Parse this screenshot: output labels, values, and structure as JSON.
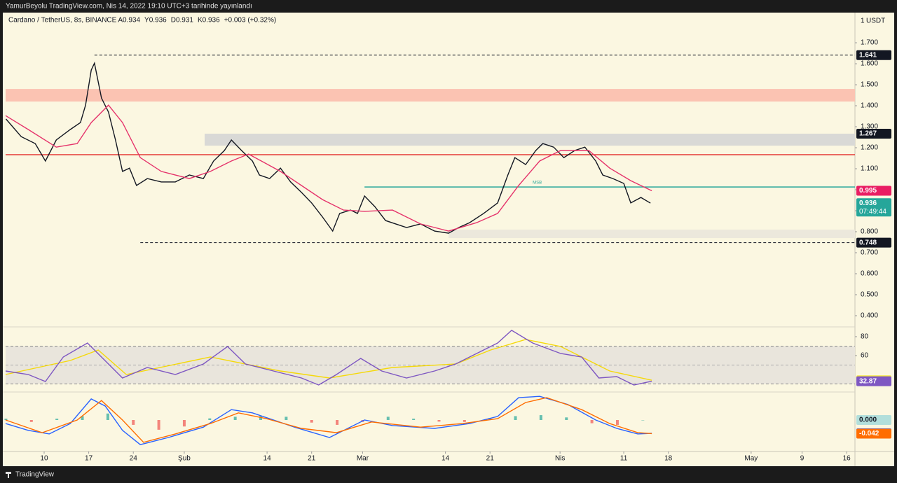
{
  "header": {
    "published": "YamurBeyolu TradingView.com, Nis 14, 2022 19:10 UTC+3 tarihinde yayınlandı",
    "symbol": "Cardano / TetherUS, 8s, BINANCE",
    "legend_items": [
      "A0.934",
      "Y0.936",
      "D0.931",
      "K0.936",
      "+0.003 (+0.32%)"
    ],
    "scale_mode": "1",
    "unit": "USDT"
  },
  "footer": {
    "brand": "TradingView"
  },
  "chart_data": [
    {
      "type": "line",
      "xlim": [
        3.95,
        137.3
      ],
      "ylim": [
        0.35,
        1.837
      ],
      "grid": false,
      "yticks": [
        {
          "value": 0.4,
          "label": "0.400"
        },
        {
          "value": 0.5,
          "label": "0.500"
        },
        {
          "value": 0.6,
          "label": "0.600"
        },
        {
          "value": 0.7,
          "label": "0.700"
        },
        {
          "value": 0.8,
          "label": "0.800"
        },
        {
          "value": 0.9,
          "label": "0.900"
        },
        {
          "value": 1.0,
          "label": "1.000"
        },
        {
          "value": 1.1,
          "label": "1.100"
        },
        {
          "value": 1.2,
          "label": "1.200"
        },
        {
          "value": 1.3,
          "label": "1.300"
        },
        {
          "value": 1.4,
          "label": "1.400"
        },
        {
          "value": 1.5,
          "label": "1.500"
        },
        {
          "value": 1.6,
          "label": "1.600"
        },
        {
          "value": 1.7,
          "label": "1.700"
        }
      ],
      "zones": [
        {
          "from": 1.42,
          "to": 1.48,
          "color": "#fbc3b2"
        },
        {
          "from": 1.21,
          "to": 1.267,
          "color": "#d9d9d6",
          "start": 35.2
        },
        {
          "from": 0.77,
          "to": 0.81,
          "color": "#ece8dc",
          "start": 73.5
        }
      ],
      "hlines": [
        {
          "value": 1.641,
          "start": 17.9,
          "color": "#131722",
          "style": "dashed"
        },
        {
          "value": 0.748,
          "start": 25.1,
          "color": "#131722",
          "style": "dashed"
        },
        {
          "value": 1.167,
          "start": 3.95,
          "color": "#e53935",
          "style": "solid"
        },
        {
          "value": 1.013,
          "start": 60.3,
          "color": "#26a69a",
          "style": "solid",
          "note": "MSB"
        }
      ],
      "axis_labels": [
        {
          "value": 1.641,
          "color": "#131722"
        },
        {
          "value": 1.267,
          "color": "#131722"
        },
        {
          "value": 0.748,
          "color": "#131722"
        }
      ],
      "series": [
        {
          "color": "#131722",
          "label_color": "#26a69a",
          "countdown": "07:49:44",
          "x": [
            4.0,
            6.4,
            8.6,
            10.2,
            11.9,
            14.1,
            15.7,
            16.5,
            17.4,
            17.9,
            19.0,
            20.1,
            21.2,
            22.3,
            23.4,
            24.5,
            26.2,
            28.4,
            30.6,
            32.8,
            35.0,
            36.6,
            38.3,
            39.4,
            41.0,
            42.7,
            43.8,
            45.4,
            47.1,
            48.7,
            50.4,
            52.0,
            53.7,
            55.3,
            56.4,
            58.1,
            59.2,
            60.3,
            61.9,
            63.6,
            65.2,
            66.9,
            69.1,
            71.3,
            73.5,
            75.1,
            76.8,
            79.0,
            81.2,
            82.8,
            83.9,
            85.6,
            87.2,
            88.3,
            90.0,
            91.6,
            93.3,
            94.9,
            96.6,
            97.7,
            99.3,
            101.0,
            102.1,
            103.7,
            105.2
          ],
          "values": [
            1.337,
            1.253,
            1.22,
            1.137,
            1.237,
            1.287,
            1.32,
            1.403,
            1.57,
            1.603,
            1.437,
            1.37,
            1.237,
            1.087,
            1.103,
            1.02,
            1.053,
            1.037,
            1.037,
            1.07,
            1.053,
            1.137,
            1.187,
            1.237,
            1.187,
            1.137,
            1.07,
            1.053,
            1.103,
            1.037,
            0.987,
            0.937,
            0.87,
            0.803,
            0.887,
            0.903,
            0.887,
            0.97,
            0.92,
            0.853,
            0.837,
            0.82,
            0.837,
            0.803,
            0.793,
            0.82,
            0.843,
            0.887,
            0.937,
            1.07,
            1.153,
            1.12,
            1.187,
            1.22,
            1.203,
            1.153,
            1.187,
            1.203,
            1.137,
            1.07,
            1.053,
            1.03,
            0.937,
            0.963,
            0.936
          ]
        },
        {
          "color": "#e5336b",
          "label_color": "#e91e63",
          "x": [
            3.95,
            7.5,
            11.9,
            15.2,
            17.4,
            20.1,
            22.3,
            25.1,
            28.4,
            32.8,
            36.1,
            39.4,
            42.1,
            47.1,
            50.4,
            53.7,
            57.0,
            60.3,
            64.7,
            69.1,
            73.5,
            77.9,
            81.2,
            84.5,
            87.8,
            91.1,
            95.5,
            98.8,
            102.1,
            105.4
          ],
          "values": [
            1.353,
            1.287,
            1.203,
            1.22,
            1.32,
            1.403,
            1.32,
            1.153,
            1.087,
            1.053,
            1.087,
            1.137,
            1.17,
            1.087,
            1.02,
            0.953,
            0.903,
            0.897,
            0.903,
            0.837,
            0.803,
            0.843,
            0.887,
            1.02,
            1.137,
            1.187,
            1.187,
            1.103,
            1.043,
            0.995
          ]
        }
      ]
    },
    {
      "type": "line",
      "xlim": [
        3.95,
        137.3
      ],
      "ylim": [
        21.5,
        89.6
      ],
      "yticks": [
        60,
        80
      ],
      "band": {
        "from": 30,
        "to": 70,
        "color": "#e9e5dc"
      },
      "midline": 50,
      "series": [
        {
          "color": "#f5d90a",
          "label_color": "#f5e93a",
          "label_text_color": "#131722",
          "x": [
            3.95,
            14.1,
            18.5,
            22.9,
            36.1,
            47.1,
            54.8,
            64.7,
            74.6,
            80.1,
            85.6,
            91.1,
            98.8,
            105.4
          ],
          "values": [
            40,
            54.8,
            65.9,
            40,
            58.5,
            43.7,
            36.3,
            47.4,
            51.1,
            65.9,
            77,
            69.6,
            43.7,
            33.92
          ]
        },
        {
          "color": "#7e57c2",
          "label_color": "#7e57c2",
          "x": [
            3.95,
            7.5,
            10.2,
            13.0,
            16.8,
            19.0,
            22.3,
            26.2,
            30.6,
            35.0,
            38.8,
            41.6,
            46.0,
            50.4,
            53.1,
            55.9,
            59.7,
            63.0,
            66.9,
            71.3,
            74.6,
            77.9,
            81.2,
            83.4,
            86.7,
            91.1,
            94.4,
            97.1,
            99.9,
            102.6,
            105.4
          ],
          "values": [
            43.7,
            40,
            32.6,
            58.5,
            73.3,
            58.5,
            36.3,
            47.4,
            40,
            51.1,
            69.6,
            51.1,
            43.7,
            36.3,
            28.9,
            40,
            57,
            43.7,
            36.3,
            43.7,
            51.1,
            62.2,
            73.3,
            86.7,
            73.3,
            62.2,
            58.5,
            36.3,
            37.8,
            28.9,
            32.87
          ]
        }
      ]
    },
    {
      "type": "line",
      "xlim": [
        3.95,
        137.3
      ],
      "ylim": [
        -0.0972,
        0.0864
      ],
      "xticks": [
        {
          "value": 10,
          "label": "10"
        },
        {
          "value": 17,
          "label": "17"
        },
        {
          "value": 24,
          "label": "24"
        },
        {
          "value": 32,
          "label": "Şub"
        },
        {
          "value": 45,
          "label": "14"
        },
        {
          "value": 52,
          "label": "21"
        },
        {
          "value": 60,
          "label": "Mar"
        },
        {
          "value": 73,
          "label": "14"
        },
        {
          "value": 80,
          "label": "21"
        },
        {
          "value": 91,
          "label": "Nis"
        },
        {
          "value": 101,
          "label": "11"
        },
        {
          "value": 108,
          "label": "18"
        },
        {
          "value": 121,
          "label": "May"
        },
        {
          "value": 129,
          "label": "9"
        },
        {
          "value": 136,
          "label": "16"
        }
      ],
      "histogram": {
        "up_color": "#26a69a",
        "down_color": "#ef5350",
        "label_color": "#b2dfdb",
        "last_value_label": "0.000",
        "x": [
          4,
          8,
          12,
          16,
          20,
          24,
          28,
          32,
          36,
          40,
          44,
          48,
          52,
          56,
          60,
          64,
          68,
          72,
          76,
          80,
          84,
          88,
          92,
          96,
          100,
          104
        ],
        "values": [
          0.004,
          -0.006,
          0.004,
          0.012,
          0.02,
          -0.015,
          -0.03,
          -0.02,
          0.005,
          0.01,
          0.012,
          0.01,
          -0.008,
          -0.015,
          -0.006,
          0.01,
          0.004,
          -0.005,
          -0.006,
          0.006,
          0.012,
          0.015,
          0.008,
          -0.01,
          -0.015,
          0
        ]
      },
      "series": [
        {
          "color": "#2962ff",
          "label_color": "#2962ff",
          "x": [
            3.95,
            7.5,
            10.8,
            14.1,
            17.4,
            19.6,
            22.3,
            25.1,
            29.5,
            35.0,
            39.4,
            42.7,
            49.3,
            54.8,
            60.3,
            64.7,
            71.3,
            76.8,
            81.2,
            84.5,
            87.8,
            92.2,
            96.6,
            99.9,
            103.2,
            105.4
          ],
          "values": [
            -0.011,
            -0.032,
            -0.043,
            -0.011,
            0.065,
            0.043,
            -0.032,
            -0.076,
            -0.054,
            -0.022,
            0.032,
            0.022,
            -0.022,
            -0.054,
            0,
            -0.017,
            -0.026,
            -0.011,
            0.011,
            0.069,
            0.073,
            0.048,
            0,
            -0.026,
            -0.043,
            -0.041
          ]
        },
        {
          "color": "#ff6d00",
          "label_color": "#ff6d00",
          "x": [
            3.95,
            9.7,
            15.2,
            19.0,
            22.3,
            25.6,
            30.6,
            36.1,
            40.5,
            44.9,
            50.4,
            55.9,
            61.4,
            69.1,
            75.7,
            81.2,
            85.6,
            88.9,
            94.4,
            98.8,
            103.2,
            105.4
          ],
          "values": [
            0,
            -0.039,
            0,
            0.06,
            0,
            -0.069,
            -0.043,
            -0.011,
            0.022,
            0.004,
            -0.026,
            -0.039,
            -0.006,
            -0.022,
            -0.011,
            0.004,
            0.054,
            0.069,
            0.032,
            -0.011,
            -0.039,
            -0.042
          ]
        }
      ]
    }
  ]
}
